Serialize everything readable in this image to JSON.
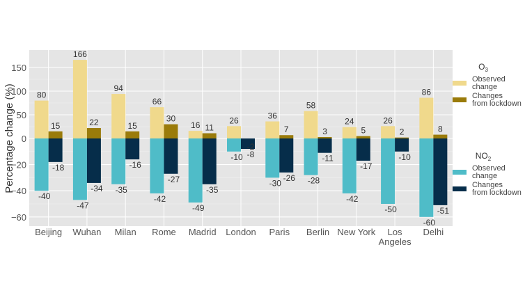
{
  "chart_data": {
    "type": "bar",
    "title": "",
    "xlabel": "",
    "ylabel": "Percentage change (%)",
    "ylim": [
      -66,
      175
    ],
    "y_ticks": [
      150,
      100,
      50,
      0,
      -20,
      -40,
      -60
    ],
    "y_scale": "piecewise linear (positive side compressed, negative side expanded)",
    "grid": true,
    "legend_placement": "right",
    "categories": [
      "Beijing",
      "Wuhan",
      "Milan",
      "Rome",
      "Madrid",
      "London",
      "Paris",
      "Berlin",
      "New York",
      "Los Angeles",
      "Delhi"
    ],
    "legend_groups": [
      {
        "title": "O",
        "subscript": "3",
        "entries": [
          "Observed change",
          "Changes from lockdown"
        ]
      },
      {
        "title": "NO",
        "subscript": "2",
        "entries": [
          "Observed change",
          "Changes from lockdown"
        ]
      }
    ],
    "series": [
      {
        "name": "O3 Observed change",
        "color": "#f0d98c",
        "values": [
          80,
          166,
          94,
          66,
          16,
          26,
          36,
          58,
          24,
          26,
          86
        ]
      },
      {
        "name": "O3 Changes from lockdown",
        "color": "#9a7b0a",
        "values": [
          15,
          22,
          15,
          30,
          11,
          -2,
          7,
          3,
          5,
          2,
          8
        ]
      },
      {
        "name": "NO2 Observed change",
        "color": "#4fbcc8",
        "values": [
          -40,
          -47,
          -35,
          -42,
          -49,
          -10,
          -30,
          -28,
          -42,
          -50,
          -60
        ]
      },
      {
        "name": "NO2 Changes from lockdown",
        "color": "#062d4a",
        "values": [
          -18,
          -34,
          -16,
          -27,
          -35,
          -8,
          -26,
          -11,
          -17,
          -10,
          -51
        ]
      }
    ]
  }
}
